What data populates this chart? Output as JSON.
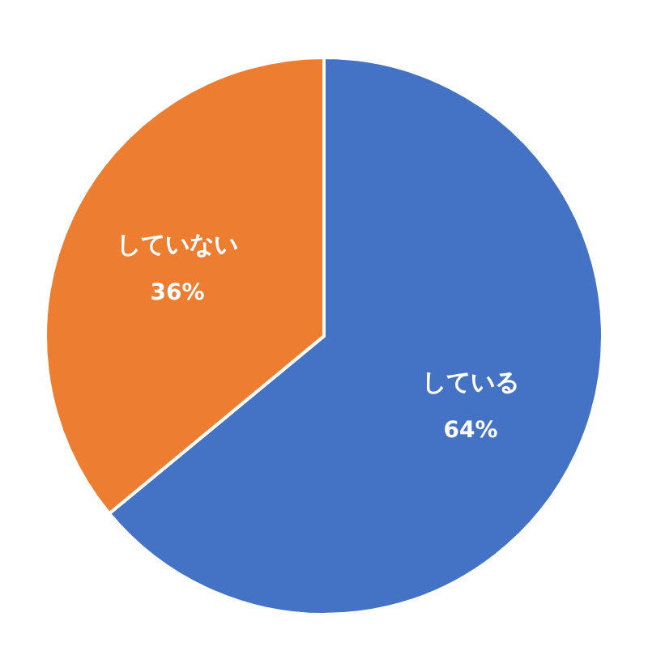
{
  "chart_data": {
    "type": "pie",
    "categories": [
      "している",
      "していない"
    ],
    "values": [
      64,
      36
    ],
    "colors": [
      "#4472c4",
      "#ed7d31"
    ],
    "value_labels": [
      "64%",
      "36%"
    ],
    "legend": false
  }
}
